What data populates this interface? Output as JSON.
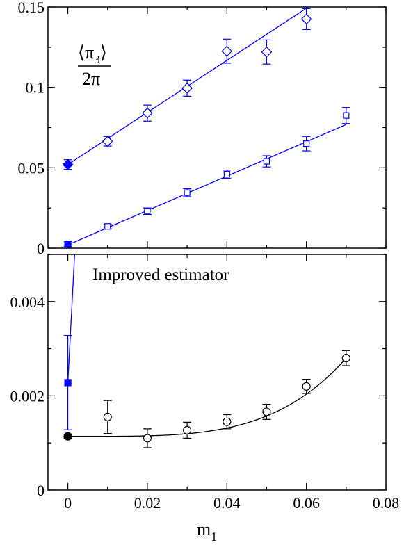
{
  "colors": {
    "blue": "#0000ff",
    "black": "#000000"
  },
  "chart_data": [
    {
      "type": "scatter",
      "panel": "top",
      "xlim": [
        -0.005,
        0.08
      ],
      "ylim": [
        0,
        0.15
      ],
      "yticks": [
        0,
        0.05,
        0.1,
        0.15
      ],
      "ytick_labels": [
        "0",
        "0.05",
        "0.1",
        "0.15"
      ],
      "ylabel": {
        "numerator": "⟨π",
        "subscript": "3",
        "close": "⟩",
        "denominator": "2π"
      },
      "grid": false,
      "series": [
        {
          "marker": "diamond-open",
          "color": "#0000ff",
          "points": [
            {
              "x": 0.01,
              "y": 0.0665,
              "err": 0.003
            },
            {
              "x": 0.02,
              "y": 0.084,
              "err": 0.005
            },
            {
              "x": 0.03,
              "y": 0.0995,
              "err": 0.005
            },
            {
              "x": 0.04,
              "y": 0.1225,
              "err": 0.0075
            },
            {
              "x": 0.05,
              "y": 0.122,
              "err": 0.0075
            },
            {
              "x": 0.06,
              "y": 0.1425,
              "err": 0.0065
            }
          ],
          "extrapolated": {
            "x": 0.0,
            "y": 0.052,
            "err": 0.003,
            "marker": "diamond-filled"
          },
          "fit": {
            "x0": 0.0,
            "y0": 0.052,
            "slope": 1.62,
            "x_end": 0.0656
          }
        },
        {
          "marker": "square-open",
          "color": "#0000ff",
          "points": [
            {
              "x": 0.01,
              "y": 0.0135,
              "err": 0.0015
            },
            {
              "x": 0.02,
              "y": 0.023,
              "err": 0.002
            },
            {
              "x": 0.03,
              "y": 0.0345,
              "err": 0.0025
            },
            {
              "x": 0.04,
              "y": 0.046,
              "err": 0.0025
            },
            {
              "x": 0.05,
              "y": 0.054,
              "err": 0.0035
            },
            {
              "x": 0.06,
              "y": 0.065,
              "err": 0.0045
            },
            {
              "x": 0.07,
              "y": 0.0825,
              "err": 0.005
            }
          ],
          "extrapolated": {
            "x": 0.0,
            "y": 0.0025,
            "err": 0.0015,
            "marker": "square-filled"
          },
          "fit": {
            "x0": 0.0,
            "y0": 0.002,
            "slope": 1.07,
            "x_end": 0.07
          }
        }
      ]
    },
    {
      "type": "scatter",
      "panel": "bottom",
      "annotation": "Improved estimator",
      "xlabel": {
        "base": "m",
        "subscript": "1"
      },
      "xlim": [
        -0.005,
        0.08
      ],
      "ylim": [
        0,
        0.005
      ],
      "xticks": [
        0,
        0.02,
        0.04,
        0.06,
        0.08
      ],
      "xtick_labels": [
        "0",
        "0.02",
        "0.04",
        "0.06",
        "0.08"
      ],
      "yticks": [
        0,
        0.002,
        0.004
      ],
      "ytick_labels": [
        "0",
        "0.002",
        "0.004"
      ],
      "grid": false,
      "series": [
        {
          "marker": "circle-open",
          "color": "#000000",
          "points": [
            {
              "x": 0.01,
              "y": 0.00155,
              "err": 0.00035
            },
            {
              "x": 0.02,
              "y": 0.0011,
              "err": 0.0002
            },
            {
              "x": 0.03,
              "y": 0.00127,
              "err": 0.00017
            },
            {
              "x": 0.04,
              "y": 0.00145,
              "err": 0.00015
            },
            {
              "x": 0.05,
              "y": 0.00166,
              "err": 0.00016
            },
            {
              "x": 0.06,
              "y": 0.0022,
              "err": 0.00015
            },
            {
              "x": 0.07,
              "y": 0.0028,
              "err": 0.00016
            }
          ],
          "extrapolated": {
            "x": 0.0,
            "y": 0.00114,
            "err": 4e-05,
            "marker": "circle-filled"
          },
          "fit": {
            "form": "a + b*x^4",
            "a": 0.00114,
            "b": 69.1,
            "x_start": 0.0,
            "x_end": 0.07
          }
        },
        {
          "marker": "square-filled",
          "color": "#0000ff",
          "points": [
            {
              "x": 0.0,
              "y": 0.00228,
              "err_low": 0.001,
              "err_high": 0.001
            }
          ],
          "line": {
            "x0": 0.0,
            "y0": 0.00228,
            "slope": 1.6
          }
        }
      ]
    }
  ]
}
